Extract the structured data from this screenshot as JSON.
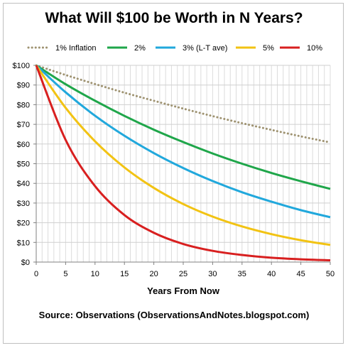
{
  "chart_data": {
    "type": "line",
    "title": "What Will $100 be Worth in N Years?",
    "xlabel": "Years From Now",
    "ylabel": "",
    "source": "Source: Observations (ObservationsAndNotes.blogspot.com)",
    "xlim": [
      0,
      50
    ],
    "ylim": [
      0,
      100
    ],
    "x_ticks": [
      0,
      5,
      10,
      15,
      20,
      25,
      30,
      35,
      40,
      45,
      50
    ],
    "y_ticks": [
      0,
      10,
      20,
      30,
      40,
      50,
      60,
      70,
      80,
      90,
      100
    ],
    "x_tick_labels": [
      "0",
      "5",
      "10",
      "15",
      "20",
      "25",
      "30",
      "35",
      "40",
      "45",
      "50"
    ],
    "y_tick_labels": [
      "$0",
      "$10",
      "$20",
      "$30",
      "$40",
      "$50",
      "$60",
      "$70",
      "$80",
      "$90",
      "$100"
    ],
    "grid": true,
    "legend_position": "top",
    "x": [
      0,
      5,
      10,
      15,
      20,
      25,
      30,
      35,
      40,
      45,
      50
    ],
    "series": [
      {
        "name": "1% Inflation",
        "color": "#9e9270",
        "dash": "dotted",
        "values": [
          100,
          95.1,
          90.5,
          86.1,
          82.0,
          78.0,
          74.2,
          70.6,
          67.2,
          63.9,
          60.8
        ]
      },
      {
        "name": "2%",
        "color": "#1fa64a",
        "dash": "solid",
        "values": [
          100,
          90.4,
          82.0,
          74.3,
          67.3,
          61.0,
          55.2,
          50.0,
          45.3,
          41.1,
          37.2
        ]
      },
      {
        "name": "3% (L-T ave)",
        "color": "#21a8dc",
        "dash": "solid",
        "values": [
          100,
          86.3,
          74.4,
          64.2,
          55.4,
          47.8,
          41.2,
          35.5,
          30.7,
          26.4,
          22.8
        ]
      },
      {
        "name": "5%",
        "color": "#f2c313",
        "dash": "solid",
        "values": [
          100,
          78.4,
          61.4,
          48.1,
          37.7,
          29.5,
          23.1,
          18.1,
          14.2,
          11.1,
          8.7
        ]
      },
      {
        "name": "10%",
        "color": "#d81f1f",
        "dash": "solid",
        "values": [
          100,
          62.1,
          38.6,
          23.9,
          14.9,
          9.2,
          5.7,
          3.6,
          2.2,
          1.4,
          0.9
        ]
      }
    ]
  }
}
